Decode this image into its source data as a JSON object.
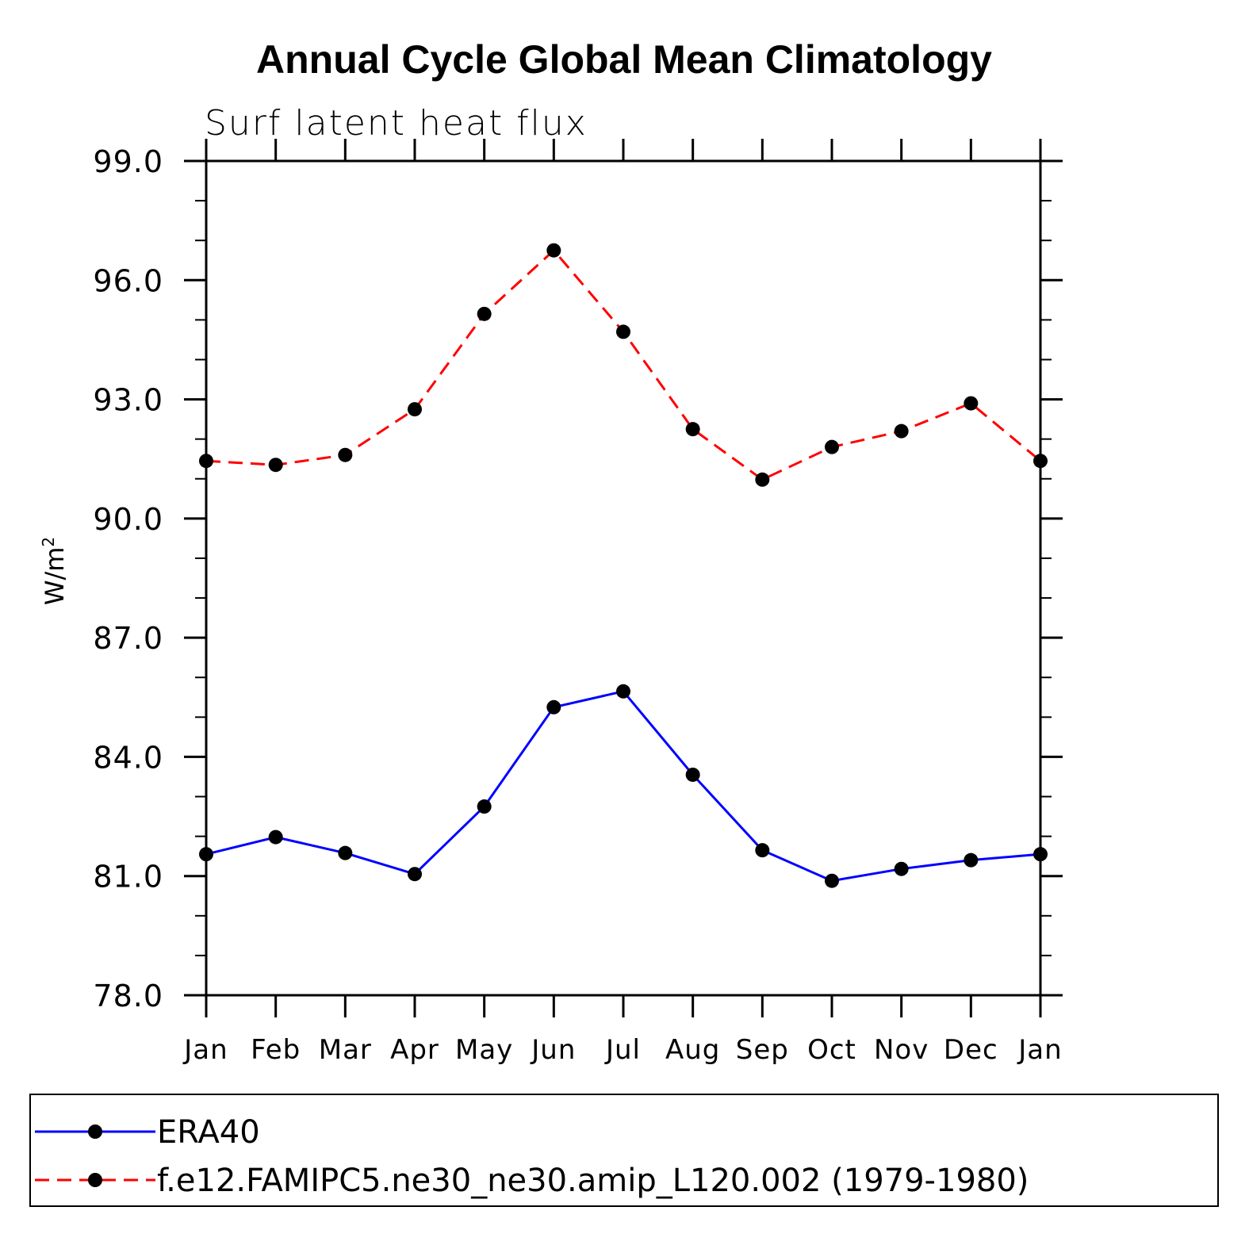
{
  "chart_data": {
    "type": "line",
    "title": "Annual Cycle Global Mean Climatology",
    "subtitle": "Surf latent heat flux",
    "ylabel": "W/m",
    "ylabel_superscript": "2",
    "xlabel": "",
    "categories": [
      "Jan",
      "Feb",
      "Mar",
      "Apr",
      "May",
      "Jun",
      "Jul",
      "Aug",
      "Sep",
      "Oct",
      "Nov",
      "Dec",
      "Jan"
    ],
    "ylim": [
      78.0,
      99.0
    ],
    "yticks": [
      "78.0",
      "81.0",
      "84.0",
      "87.0",
      "90.0",
      "93.0",
      "96.0",
      "99.0"
    ],
    "ytick_values": [
      78,
      81,
      84,
      87,
      90,
      93,
      96,
      99
    ],
    "series": [
      {
        "name": "ERA40",
        "color": "#0000ff",
        "dash": "solid",
        "values": [
          81.55,
          81.98,
          81.58,
          81.05,
          82.75,
          85.25,
          85.65,
          83.55,
          81.65,
          80.88,
          81.18,
          81.4,
          81.55
        ]
      },
      {
        "name": "f.e12.FAMIPC5.ne30_ne30.amip_L120.002 (1979-1980)",
        "color": "#ff0000",
        "dash": "dashed",
        "values": [
          91.45,
          91.35,
          91.6,
          92.75,
          95.15,
          96.75,
          94.7,
          92.25,
          90.98,
          91.8,
          92.2,
          92.9,
          91.45
        ]
      }
    ],
    "legend_position": "bottom"
  }
}
